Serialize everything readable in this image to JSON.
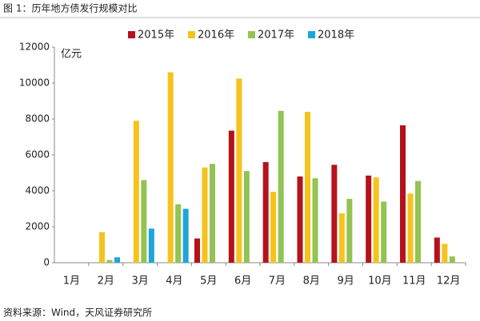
{
  "chart_data": {
    "type": "bar",
    "title": "图 1：历年地方债发行规模对比",
    "y_unit": "亿元",
    "source": "资料来源：Wind，天风证券研究所",
    "categories": [
      "1月",
      "2月",
      "3月",
      "4月",
      "5月",
      "6月",
      "7月",
      "8月",
      "9月",
      "10月",
      "11月",
      "12月"
    ],
    "series": [
      {
        "name": "2015年",
        "color": "#b5121b",
        "values": [
          0,
          0,
          0,
          0,
          1350,
          7350,
          5600,
          4800,
          5450,
          4850,
          7650,
          1400
        ]
      },
      {
        "name": "2016年",
        "color": "#f5c31c",
        "values": [
          0,
          1700,
          7900,
          10600,
          5300,
          10250,
          3950,
          8400,
          2750,
          4750,
          3850,
          1050
        ]
      },
      {
        "name": "2017年",
        "color": "#92c353",
        "values": [
          0,
          150,
          4600,
          3250,
          5500,
          5100,
          8450,
          4700,
          3550,
          3400,
          4550,
          350
        ]
      },
      {
        "name": "2018年",
        "color": "#1ea6d8",
        "values": [
          0,
          300,
          1900,
          3000,
          null,
          null,
          null,
          null,
          null,
          null,
          null,
          null
        ]
      }
    ],
    "ylim": [
      0,
      12000
    ],
    "yticks": [
      0,
      2000,
      4000,
      6000,
      8000,
      10000,
      12000
    ],
    "grid": false
  }
}
